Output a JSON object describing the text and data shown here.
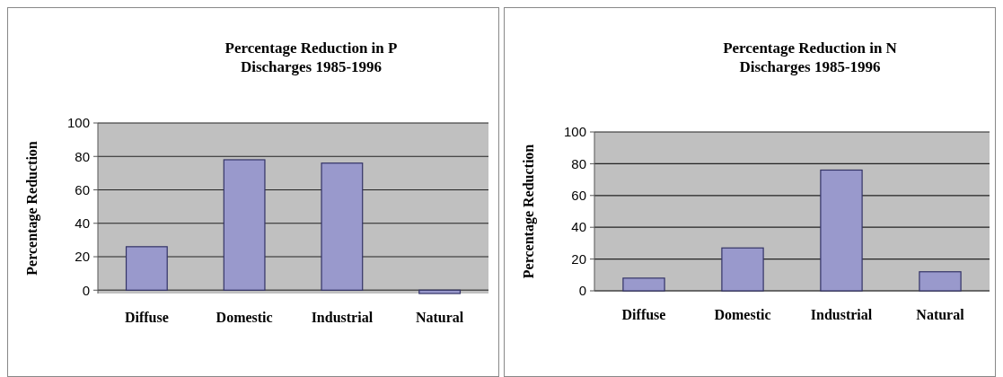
{
  "chart_data": [
    {
      "type": "bar",
      "title": "Percentage Reduction in P\nDischarges 1985-1996",
      "ylabel": "Percentage Reduction",
      "categories": [
        "Diffuse",
        "Domestic",
        "Industrial",
        "Natural"
      ],
      "values": [
        26,
        78,
        76,
        -2
      ],
      "color": "#9999cc",
      "ylim": [
        -2,
        100
      ],
      "yticks": [
        0,
        20,
        40,
        60,
        80,
        100
      ],
      "grid": "y"
    },
    {
      "type": "bar",
      "title": "Percentage Reduction in N\nDischarges 1985-1996",
      "ylabel": "Percentage Reduction",
      "categories": [
        "Diffuse",
        "Domestic",
        "Industrial",
        "Natural"
      ],
      "values": [
        8,
        27,
        76,
        12
      ],
      "color": "#9999cc",
      "ylim": [
        0,
        100
      ],
      "yticks": [
        0,
        20,
        40,
        60,
        80,
        100
      ],
      "grid": "y"
    }
  ]
}
